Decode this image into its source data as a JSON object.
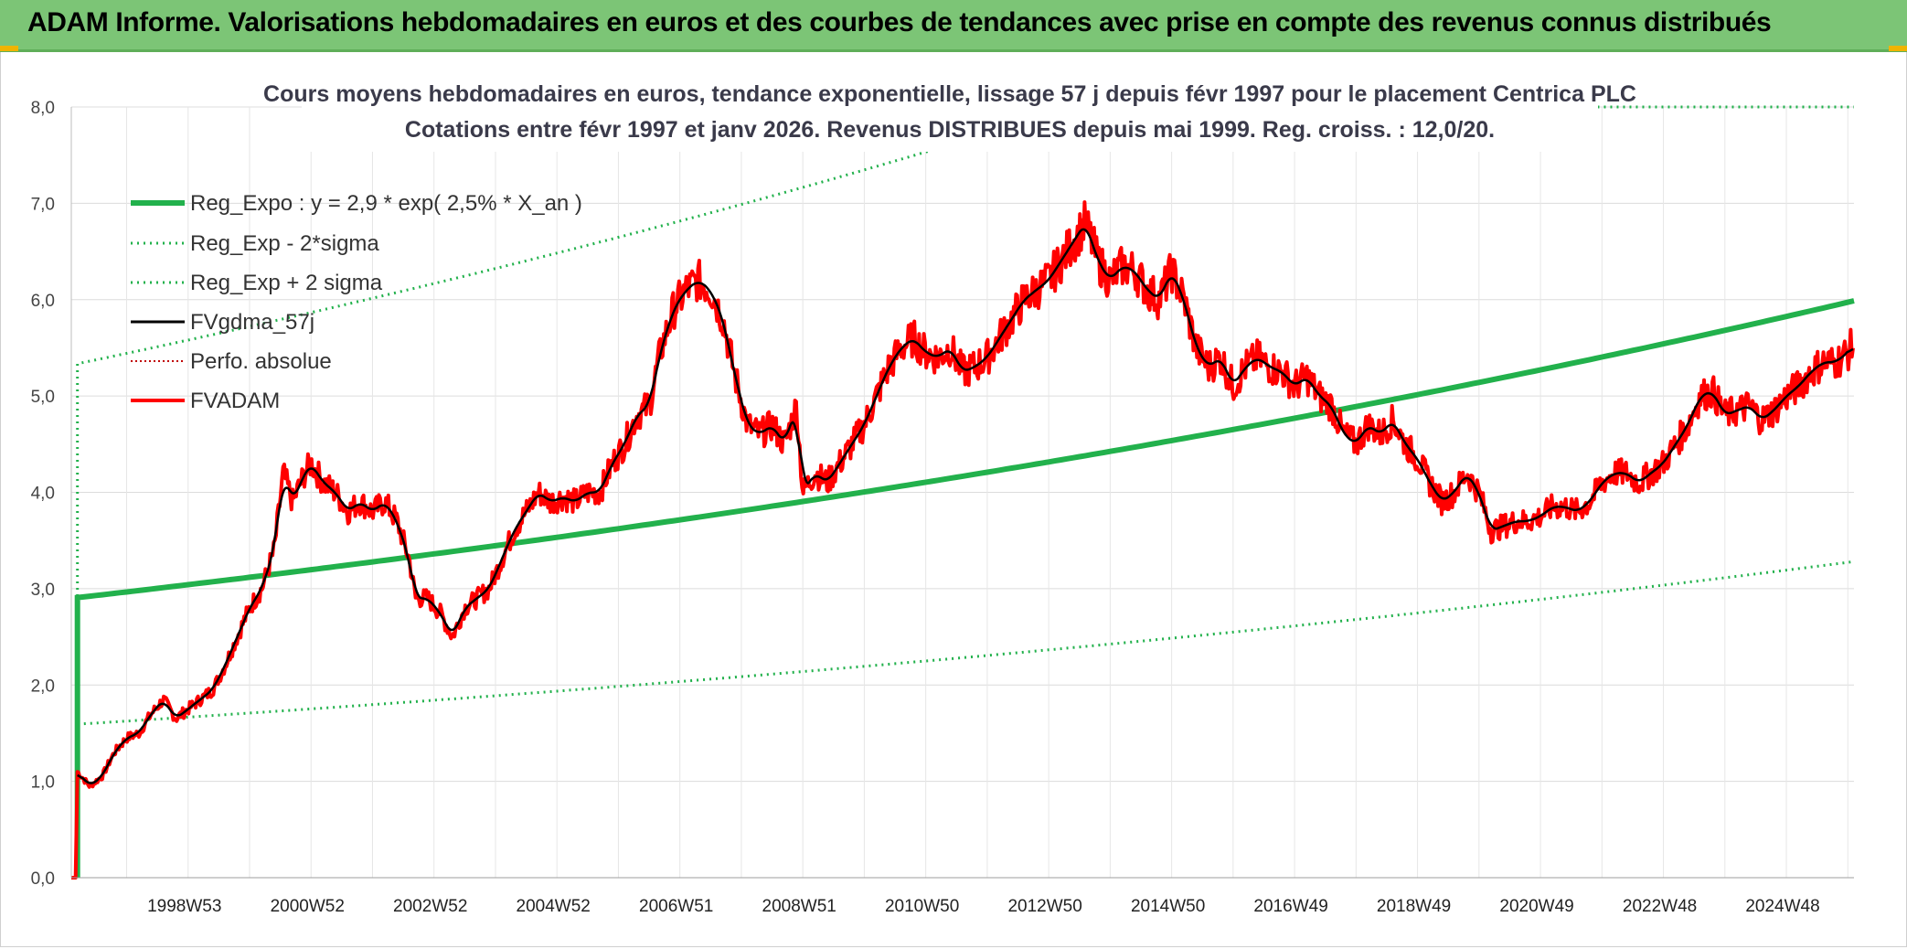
{
  "header": {
    "title": "ADAM Informe. Valorisations hebdomadaires en euros et des courbes de tendances avec prise en compte des revenus connus distribués",
    "accent": "#7cc576"
  },
  "chart_data": {
    "type": "line",
    "title_line1": "Cours moyens hebdomadaires en euros, tendance exponentielle, lissage 57 j depuis févr 1997 pour le placement Centrica PLC",
    "title_line2": "Cotations entre févr 1997 et janv 2026. Revenus DISTRIBUES depuis mai 1999. Reg. croiss. : 12,0/20.",
    "ylim": [
      0,
      8
    ],
    "yticks": [
      "0,0",
      "1,0",
      "2,0",
      "3,0",
      "4,0",
      "5,0",
      "6,0",
      "7,0",
      "8,0"
    ],
    "xlim": [
      1997.1,
      2026.1
    ],
    "xticks": [
      {
        "label": "1998W53",
        "x": 1999.0
      },
      {
        "label": "2000W52",
        "x": 2001.0
      },
      {
        "label": "2002W52",
        "x": 2003.0
      },
      {
        "label": "2004W52",
        "x": 2005.0
      },
      {
        "label": "2006W51",
        "x": 2007.0
      },
      {
        "label": "2008W51",
        "x": 2009.0
      },
      {
        "label": "2010W50",
        "x": 2011.0
      },
      {
        "label": "2012W50",
        "x": 2013.0
      },
      {
        "label": "2014W50",
        "x": 2015.0
      },
      {
        "label": "2016W49",
        "x": 2017.0
      },
      {
        "label": "2018W49",
        "x": 2019.0
      },
      {
        "label": "2020W49",
        "x": 2021.0
      },
      {
        "label": "2022W48",
        "x": 2023.0
      },
      {
        "label": "2024W48",
        "x": 2025.0
      }
    ],
    "grid": true,
    "legend_position": "top-left",
    "series": [
      {
        "name": "Reg_Expo : y = 2,9 * exp( 2,5% *  X_an )",
        "color": "#22b14c",
        "style": "solid",
        "width": 6
      },
      {
        "name": "Reg_Exp - 2*sigma",
        "color": "#22b14c",
        "style": "dotted",
        "width": 3
      },
      {
        "name": "Reg_Exp + 2 sigma",
        "color": "#22b14c",
        "style": "dotted",
        "width": 3
      },
      {
        "name": "FVgdma_57j",
        "color": "#000000",
        "style": "solid",
        "width": 3
      },
      {
        "name": "Perfo. absolue",
        "color": "#c00000",
        "style": "dotted",
        "width": 2
      },
      {
        "name": "FVADAM",
        "color": "#ff0000",
        "style": "solid",
        "width": 4
      }
    ],
    "regression": {
      "a": 2.9,
      "rate": 0.025,
      "x0": 1997.1,
      "lower_factor": 0.548,
      "upper_factor": 1.835,
      "series_start": 1997.2
    },
    "fvadam_points": [
      [
        1997.1,
        0.0
      ],
      [
        1997.15,
        0.0
      ],
      [
        1997.2,
        1.1
      ],
      [
        1997.4,
        0.95
      ],
      [
        1997.6,
        1.05
      ],
      [
        1997.8,
        1.3
      ],
      [
        1998.0,
        1.45
      ],
      [
        1998.2,
        1.5
      ],
      [
        1998.4,
        1.7
      ],
      [
        1998.6,
        1.85
      ],
      [
        1998.8,
        1.65
      ],
      [
        1999.0,
        1.75
      ],
      [
        1999.2,
        1.85
      ],
      [
        1999.4,
        1.95
      ],
      [
        1999.6,
        2.2
      ],
      [
        1999.8,
        2.5
      ],
      [
        2000.0,
        2.8
      ],
      [
        2000.2,
        3.0
      ],
      [
        2000.4,
        3.4
      ],
      [
        2000.55,
        4.2
      ],
      [
        2000.7,
        3.9
      ],
      [
        2000.9,
        4.2
      ],
      [
        2001.0,
        4.3
      ],
      [
        2001.2,
        4.1
      ],
      [
        2001.4,
        4.0
      ],
      [
        2001.6,
        3.8
      ],
      [
        2001.8,
        3.9
      ],
      [
        2002.0,
        3.8
      ],
      [
        2002.2,
        3.9
      ],
      [
        2002.4,
        3.7
      ],
      [
        2002.6,
        3.3
      ],
      [
        2002.7,
        2.9
      ],
      [
        2002.9,
        2.9
      ],
      [
        2003.1,
        2.75
      ],
      [
        2003.3,
        2.5
      ],
      [
        2003.5,
        2.8
      ],
      [
        2003.7,
        2.9
      ],
      [
        2003.9,
        3.0
      ],
      [
        2004.1,
        3.3
      ],
      [
        2004.3,
        3.6
      ],
      [
        2004.5,
        3.8
      ],
      [
        2004.7,
        4.0
      ],
      [
        2004.9,
        3.9
      ],
      [
        2005.1,
        3.95
      ],
      [
        2005.3,
        3.9
      ],
      [
        2005.5,
        4.0
      ],
      [
        2005.7,
        4.0
      ],
      [
        2005.9,
        4.3
      ],
      [
        2006.1,
        4.5
      ],
      [
        2006.3,
        4.8
      ],
      [
        2006.5,
        4.9
      ],
      [
        2006.7,
        5.5
      ],
      [
        2006.9,
        5.9
      ],
      [
        2007.1,
        6.1
      ],
      [
        2007.3,
        6.2
      ],
      [
        2007.5,
        6.1
      ],
      [
        2007.7,
        5.8
      ],
      [
        2007.9,
        5.2
      ],
      [
        2008.1,
        4.7
      ],
      [
        2008.3,
        4.6
      ],
      [
        2008.5,
        4.7
      ],
      [
        2008.7,
        4.5
      ],
      [
        2008.9,
        4.9
      ],
      [
        2009.0,
        4.0
      ],
      [
        2009.2,
        4.2
      ],
      [
        2009.4,
        4.1
      ],
      [
        2009.6,
        4.3
      ],
      [
        2009.8,
        4.5
      ],
      [
        2010.0,
        4.7
      ],
      [
        2010.2,
        5.0
      ],
      [
        2010.4,
        5.3
      ],
      [
        2010.6,
        5.5
      ],
      [
        2010.8,
        5.6
      ],
      [
        2011.0,
        5.45
      ],
      [
        2011.2,
        5.4
      ],
      [
        2011.4,
        5.5
      ],
      [
        2011.6,
        5.25
      ],
      [
        2011.8,
        5.3
      ],
      [
        2012.0,
        5.4
      ],
      [
        2012.2,
        5.6
      ],
      [
        2012.4,
        5.8
      ],
      [
        2012.6,
        6.0
      ],
      [
        2012.8,
        6.1
      ],
      [
        2013.0,
        6.2
      ],
      [
        2013.2,
        6.4
      ],
      [
        2013.4,
        6.6
      ],
      [
        2013.6,
        6.8
      ],
      [
        2013.8,
        6.4
      ],
      [
        2014.0,
        6.2
      ],
      [
        2014.2,
        6.35
      ],
      [
        2014.4,
        6.3
      ],
      [
        2014.6,
        6.1
      ],
      [
        2014.8,
        6.0
      ],
      [
        2015.0,
        6.3
      ],
      [
        2015.2,
        6.0
      ],
      [
        2015.4,
        5.5
      ],
      [
        2015.6,
        5.3
      ],
      [
        2015.8,
        5.4
      ],
      [
        2016.0,
        5.1
      ],
      [
        2016.2,
        5.3
      ],
      [
        2016.4,
        5.4
      ],
      [
        2016.6,
        5.3
      ],
      [
        2016.8,
        5.25
      ],
      [
        2017.0,
        5.1
      ],
      [
        2017.2,
        5.2
      ],
      [
        2017.4,
        5.0
      ],
      [
        2017.6,
        4.9
      ],
      [
        2017.8,
        4.6
      ],
      [
        2018.0,
        4.5
      ],
      [
        2018.2,
        4.7
      ],
      [
        2018.4,
        4.6
      ],
      [
        2018.6,
        4.75
      ],
      [
        2018.8,
        4.5
      ],
      [
        2019.0,
        4.35
      ],
      [
        2019.2,
        4.1
      ],
      [
        2019.4,
        3.9
      ],
      [
        2019.6,
        4.0
      ],
      [
        2019.8,
        4.2
      ],
      [
        2020.0,
        4.0
      ],
      [
        2020.2,
        3.6
      ],
      [
        2020.4,
        3.65
      ],
      [
        2020.6,
        3.7
      ],
      [
        2020.8,
        3.7
      ],
      [
        2021.0,
        3.75
      ],
      [
        2021.2,
        3.85
      ],
      [
        2021.4,
        3.85
      ],
      [
        2021.6,
        3.8
      ],
      [
        2021.8,
        3.9
      ],
      [
        2022.0,
        4.1
      ],
      [
        2022.2,
        4.2
      ],
      [
        2022.4,
        4.2
      ],
      [
        2022.6,
        4.1
      ],
      [
        2022.8,
        4.2
      ],
      [
        2023.0,
        4.3
      ],
      [
        2023.2,
        4.5
      ],
      [
        2023.4,
        4.7
      ],
      [
        2023.6,
        5.0
      ],
      [
        2023.8,
        5.05
      ],
      [
        2024.0,
        4.8
      ],
      [
        2024.2,
        4.85
      ],
      [
        2024.4,
        4.9
      ],
      [
        2024.6,
        4.75
      ],
      [
        2024.8,
        4.85
      ],
      [
        2025.0,
        5.0
      ],
      [
        2025.2,
        5.1
      ],
      [
        2025.4,
        5.25
      ],
      [
        2025.6,
        5.35
      ],
      [
        2025.8,
        5.35
      ],
      [
        2026.0,
        5.45
      ],
      [
        2026.1,
        5.55
      ]
    ]
  }
}
